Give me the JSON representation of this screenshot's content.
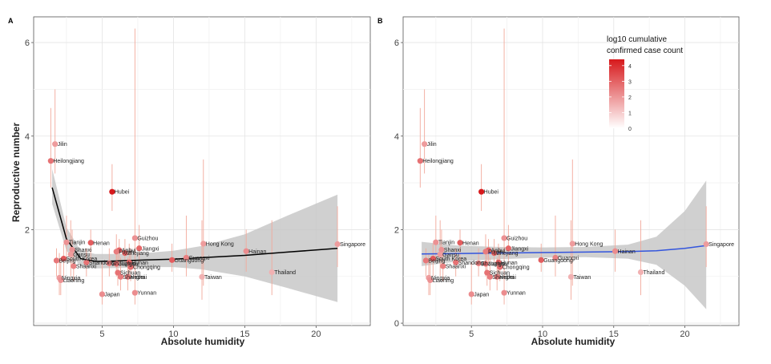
{
  "chart_data": [
    {
      "type": "scatter",
      "panel": "A",
      "xlabel": "Absolute humidity",
      "ylabel": "Reproductive number",
      "xlim": [
        0.2,
        23.8
      ],
      "ylim": [
        -0.05,
        6.55
      ],
      "xticks": [
        5,
        10,
        15,
        20
      ],
      "yticks": [
        2,
        4,
        6
      ],
      "ytick_labels": [
        "2",
        "4",
        "6"
      ],
      "fit": {
        "color": "#000000",
        "x": [
          1.5,
          2.5,
          3.5,
          4.5,
          6,
          8,
          10,
          12,
          15,
          18,
          21.5
        ],
        "y": [
          2.9,
          1.8,
          1.38,
          1.32,
          1.33,
          1.35,
          1.37,
          1.4,
          1.45,
          1.52,
          1.6
        ],
        "lower": [
          2.55,
          1.55,
          1.22,
          1.17,
          1.18,
          1.2,
          1.2,
          1.15,
          1.0,
          0.75,
          0.45
        ],
        "upper": [
          3.3,
          2.05,
          1.55,
          1.48,
          1.48,
          1.5,
          1.55,
          1.65,
          1.9,
          2.3,
          2.75
        ]
      }
    },
    {
      "type": "scatter",
      "panel": "B",
      "xlabel": "Absolute humidity",
      "ylabel": "",
      "xlim": [
        0.2,
        23.8
      ],
      "ylim": [
        -0.05,
        6.55
      ],
      "xticks": [
        5,
        10,
        15,
        20
      ],
      "yticks": [
        0,
        2,
        4,
        6
      ],
      "ytick_labels": [
        "0",
        "2",
        "4",
        "6"
      ],
      "fit": {
        "color": "#3355dd",
        "x": [
          1.5,
          4,
          7,
          10,
          13,
          16,
          18,
          20,
          21.5
        ],
        "y": [
          1.48,
          1.49,
          1.5,
          1.51,
          1.52,
          1.53,
          1.55,
          1.6,
          1.66
        ],
        "lower": [
          1.22,
          1.32,
          1.37,
          1.4,
          1.41,
          1.38,
          1.25,
          0.8,
          0.3
        ],
        "upper": [
          1.74,
          1.66,
          1.63,
          1.62,
          1.63,
          1.68,
          1.85,
          2.4,
          3.05
        ]
      },
      "legend": {
        "title": "log10 cumulative\n confirmed case count",
        "min": 0,
        "max": 4.4,
        "ticks": [
          0,
          1,
          2,
          3,
          4
        ],
        "low_color": "#ffffff",
        "high_color": "#d7191c",
        "placement": "top-right"
      }
    }
  ],
  "points": [
    {
      "name": "Jilin",
      "x": 1.7,
      "y": 3.83,
      "lo": 3.2,
      "hi": 5.0,
      "c": 1.9
    },
    {
      "name": "Heilongjiang",
      "x": 1.4,
      "y": 3.47,
      "lo": 2.9,
      "hi": 4.6,
      "c": 2.7
    },
    {
      "name": "Hubei",
      "x": 5.7,
      "y": 2.81,
      "lo": 2.4,
      "hi": 3.4,
      "c": 4.4
    },
    {
      "name": "Guizhou",
      "x": 7.3,
      "y": 1.82,
      "lo": 1.3,
      "hi": 6.3,
      "c": 2.1
    },
    {
      "name": "Tianjin",
      "x": 2.5,
      "y": 1.73,
      "lo": 1.3,
      "hi": 2.3,
      "c": 2.1
    },
    {
      "name": "Henan",
      "x": 4.2,
      "y": 1.72,
      "lo": 1.3,
      "hi": 2.0,
      "c": 3.1
    },
    {
      "name": "Jiangxi",
      "x": 7.6,
      "y": 1.6,
      "lo": 1.3,
      "hi": 2.1,
      "c": 2.9
    },
    {
      "name": "Shanxi",
      "x": 2.9,
      "y": 1.57,
      "lo": 1.2,
      "hi": 2.0,
      "c": 2.1
    },
    {
      "name": "Gansu",
      "x": 2.8,
      "y": 1.47,
      "lo": 1.0,
      "hi": 2.2,
      "c": 1.9
    },
    {
      "name": "Anhui",
      "x": 6.2,
      "y": 1.56,
      "lo": 1.3,
      "hi": 1.8,
      "c": 3.0
    },
    {
      "name": "Fujian",
      "x": 6.0,
      "y": 1.53,
      "lo": 1.2,
      "hi": 1.9,
      "c": 2.5
    },
    {
      "name": "Zhejiang",
      "x": 6.6,
      "y": 1.5,
      "lo": 1.3,
      "hi": 1.8,
      "c": 3.1
    },
    {
      "name": "Hunan",
      "x": 6.9,
      "y": 1.3,
      "lo": 1.0,
      "hi": 1.7,
      "c": 3.0
    },
    {
      "name": "Chongqing",
      "x": 7.0,
      "y": 1.2,
      "lo": 0.9,
      "hi": 1.6,
      "c": 2.8
    },
    {
      "name": "South Korea",
      "x": 2.3,
      "y": 1.38,
      "lo": 1.0,
      "hi": 1.7,
      "c": 3.2
    },
    {
      "name": "Beijing",
      "x": 1.8,
      "y": 1.34,
      "lo": 1.0,
      "hi": 1.6,
      "c": 2.6
    },
    {
      "name": "Shandong",
      "x": 3.9,
      "y": 1.3,
      "lo": 1.0,
      "hi": 1.6,
      "c": 2.7
    },
    {
      "name": "Shaanxi",
      "x": 3.0,
      "y": 1.22,
      "lo": 0.9,
      "hi": 1.6,
      "c": 2.4
    },
    {
      "name": "Shanghai",
      "x": 5.5,
      "y": 1.28,
      "lo": 1.0,
      "hi": 1.6,
      "c": 2.5
    },
    {
      "name": "Jiangsu",
      "x": 6.0,
      "y": 1.27,
      "lo": 1.0,
      "hi": 1.6,
      "c": 2.8
    },
    {
      "name": "Sichuan",
      "x": 6.1,
      "y": 1.08,
      "lo": 0.8,
      "hi": 1.5,
      "c": 2.7
    },
    {
      "name": "Guangdong",
      "x": 9.9,
      "y": 1.35,
      "lo": 1.1,
      "hi": 1.7,
      "c": 3.1
    },
    {
      "name": "Guangxi",
      "x": 10.9,
      "y": 1.4,
      "lo": 1.0,
      "hi": 2.3,
      "c": 2.4
    },
    {
      "name": "Shanghai",
      "x": 6.3,
      "y": 0.99,
      "lo": 0.7,
      "hi": 1.4,
      "c": 2.5
    },
    {
      "name": "Hebei",
      "x": 6.8,
      "y": 0.99,
      "lo": 0.7,
      "hi": 1.4,
      "c": 2.5
    },
    {
      "name": "Ningxia",
      "x": 2.0,
      "y": 0.97,
      "lo": 0.6,
      "hi": 1.5,
      "c": 1.9
    },
    {
      "name": "Liaoning",
      "x": 2.1,
      "y": 0.92,
      "lo": 0.6,
      "hi": 1.4,
      "c": 2.1
    },
    {
      "name": "Japan",
      "x": 5.0,
      "y": 0.62,
      "lo": 0.4,
      "hi": 1.3,
      "c": 2.2
    },
    {
      "name": "Yunnan",
      "x": 7.3,
      "y": 0.65,
      "lo": 0.4,
      "hi": 1.3,
      "c": 2.2
    },
    {
      "name": "Hong Kong",
      "x": 12.1,
      "y": 1.7,
      "lo": 0.8,
      "hi": 3.5,
      "c": 1.9
    },
    {
      "name": "Hainan",
      "x": 15.1,
      "y": 1.54,
      "lo": 1.1,
      "hi": 2.0,
      "c": 2.2
    },
    {
      "name": "Taiwan",
      "x": 12.0,
      "y": 0.99,
      "lo": 0.5,
      "hi": 2.2,
      "c": 1.5
    },
    {
      "name": "Thailand",
      "x": 16.9,
      "y": 1.09,
      "lo": 0.6,
      "hi": 2.2,
      "c": 1.5
    },
    {
      "name": "Singapore",
      "x": 21.5,
      "y": 1.69,
      "lo": 1.2,
      "hi": 2.5,
      "c": 1.9
    }
  ]
}
